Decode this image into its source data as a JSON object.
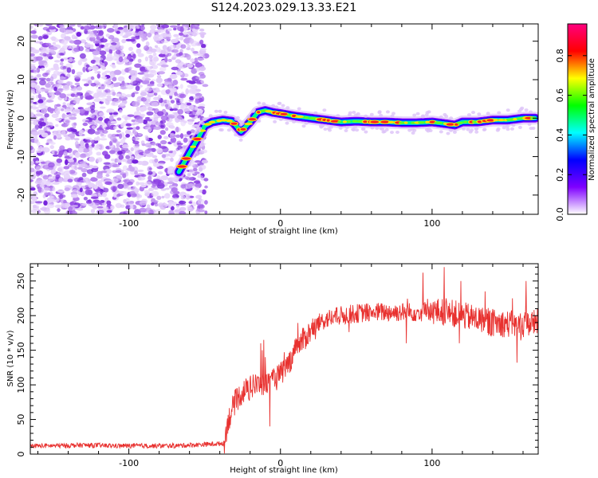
{
  "title": "S124.2023.029.13.33.E21",
  "chart_data": [
    {
      "type": "heatmap",
      "title": "S124.2023.029.13.33.E21",
      "xlabel": "Height of straight line (km)",
      "ylabel": "Frequency (Hz)",
      "xlim": [
        -165,
        170
      ],
      "ylim": [
        -25,
        24.5
      ],
      "xticks": [
        -100,
        0,
        100
      ],
      "yticks": [
        -20,
        -10,
        0,
        10,
        20
      ],
      "colorbar": {
        "label": "Normalized spectral amplitude",
        "range": [
          0,
          0.96
        ],
        "ticks": [
          "0.0",
          "0.2",
          "0.4",
          "0.6",
          "0.8"
        ],
        "colors": [
          "#ffffff",
          "#7f00ff",
          "#0000ff",
          "#00ffff",
          "#00ff00",
          "#ffff00",
          "#ff0000",
          "#ff007f"
        ]
      },
      "noise_region_x": [
        -165,
        -49
      ],
      "signal_track": {
        "x": [
          -67,
          -60,
          -54,
          -50,
          -45,
          -38,
          -32,
          -26,
          -20,
          -15,
          -10,
          -5,
          0,
          10,
          20,
          30,
          40,
          50,
          60,
          70,
          80,
          90,
          100,
          110,
          115,
          120,
          130,
          140,
          150,
          160,
          168
        ],
        "freq_hz": [
          -14,
          -9,
          -5,
          -2,
          -1,
          -0.5,
          -0.8,
          -3.5,
          -1,
          1.5,
          2,
          1.5,
          1.2,
          0.5,
          0,
          -0.5,
          -1,
          -0.8,
          -1,
          -1,
          -1.2,
          -1.2,
          -1,
          -1.5,
          -1.8,
          -1,
          -1,
          -0.5,
          -0.5,
          0,
          0
        ]
      }
    },
    {
      "type": "line",
      "xlabel": "Height of straight line (km)",
      "ylabel": "SNR (10 * v/v)",
      "xlim": [
        -165,
        170
      ],
      "ylim": [
        0,
        275
      ],
      "xticks": [
        -100,
        0,
        100
      ],
      "yticks": [
        0,
        50,
        100,
        150,
        200,
        250
      ],
      "color": "#e8312f",
      "series": [
        {
          "x": [
            -165,
            -150,
            -130,
            -110,
            -90,
            -70,
            -50,
            -40,
            -37,
            -35,
            -30,
            -25,
            -20,
            -15,
            -10,
            -5,
            0,
            5,
            10,
            15,
            20,
            25,
            30,
            40,
            50,
            60,
            70,
            80,
            90,
            100,
            110,
            120,
            130,
            140,
            150,
            160,
            170
          ],
          "values": [
            12,
            12,
            13,
            12,
            12,
            12,
            14,
            15,
            16,
            45,
            75,
            90,
            95,
            100,
            100,
            105,
            115,
            130,
            150,
            165,
            178,
            188,
            195,
            200,
            203,
            205,
            205,
            205,
            205,
            206,
            205,
            200,
            195,
            190,
            188,
            187,
            190
          ]
        }
      ],
      "spikes": [
        [
          -13,
          160
        ],
        [
          -12,
          150
        ],
        [
          -10,
          140
        ],
        [
          -4,
          120
        ],
        [
          -11,
          165
        ],
        [
          -18,
          115
        ],
        [
          -22,
          105
        ],
        [
          94,
          262
        ],
        [
          108,
          270
        ],
        [
          119,
          250
        ],
        [
          162,
          250
        ],
        [
          135,
          235
        ],
        [
          153,
          225
        ],
        [
          118,
          160
        ],
        [
          139,
          170
        ],
        [
          156,
          132
        ],
        [
          83,
          160
        ],
        [
          -7,
          40
        ],
        [
          8,
          132
        ]
      ]
    }
  ]
}
